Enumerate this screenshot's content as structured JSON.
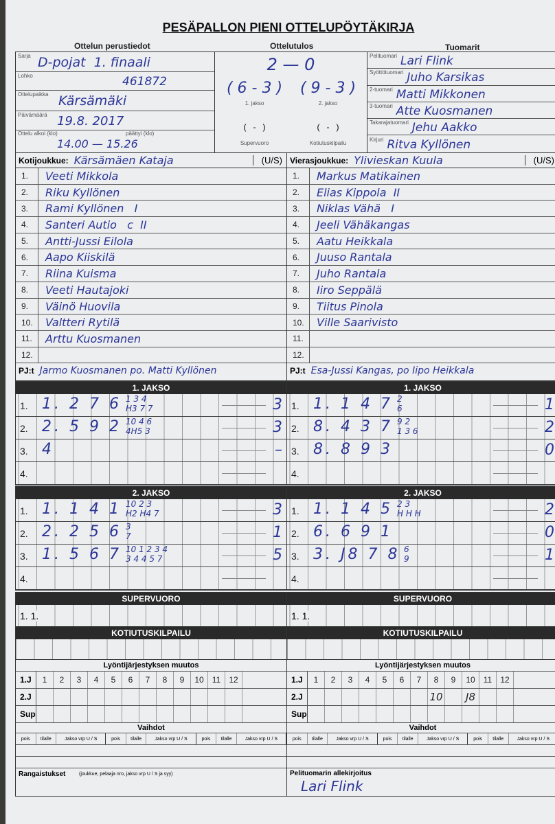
{
  "title": "PESÄPALLON PIENI OTTELUPÖYTÄKIRJA",
  "sections": {
    "basic": "Ottelun perustiedot",
    "result": "Ottelutulos",
    "referees": "Tuomarit"
  },
  "basic": {
    "series_label": "Sarja",
    "series": "D-pojat  1. finaali",
    "block_label": "Lohko",
    "block": "461872",
    "venue_label": "Ottelupaikka",
    "venue": "Kärsämäki",
    "date_label": "Päivämäärä",
    "date": "19.8. 2017",
    "start_label": "Ottelu alkoi (klo)",
    "end_label": "päättyi (klo)",
    "time": "14.00 — 15.26"
  },
  "result": {
    "final": "2 — 0",
    "period1": "( 6 - 3 )",
    "period2": "( 9 - 3 )",
    "period1_label": "1. jakso",
    "period2_label": "2. jakso",
    "super": "(   -   )",
    "homerun": "(   -   )",
    "super_label": "Supervuoro",
    "homerun_label": "Kotiutuskilpailu"
  },
  "referees": [
    {
      "label": "Pelituomari",
      "name": "Lari Flink"
    },
    {
      "label": "Syöttötuomari",
      "name": "Juho Karsikas"
    },
    {
      "label": "2-tuomari",
      "name": "Matti Mikkonen"
    },
    {
      "label": "3-tuomari",
      "name": "Atte Kuosmanen"
    },
    {
      "label": "Takarajatuomari",
      "name": "Jehu Aakko"
    },
    {
      "label": "Kirjuri",
      "name": "Ritva Kyllönen"
    }
  ],
  "home": {
    "label": "Kotijoukkue:",
    "name": "Kärsämäen Kataja",
    "us": "(U/S)",
    "selected": "U",
    "players": [
      "Veeti Mikkola",
      "Riku Kyllönen",
      "Rami Kyllönen   I",
      "Santeri Autio   c  II",
      "Antti-Jussi Eilola",
      "Aapo Kiiskilä",
      "Riina Kuisma",
      "Veeti Hautajoki",
      "Väinö Huovila",
      "Valtteri Rytilä",
      "Arttu Kuosmanen",
      ""
    ],
    "pj_label": "PJ:t",
    "pj": "Jarmo Kuosmanen po. Matti Kyllönen"
  },
  "away": {
    "label": "Vierasjoukkue:",
    "name": "Ylivieskan Kuula",
    "us": "(U/S)",
    "selected": "S",
    "players": [
      "Markus Matikainen",
      "Elias Kippola  II",
      "Niklas Vähä   I",
      "Jeeli Vähäkangas",
      "Aatu Heikkala",
      "Juuso Rantala",
      "Juho Rantala",
      "Iiro Seppälä",
      "Tiitus Pinola",
      "Ville Saarivisto",
      "",
      ""
    ],
    "pj_label": "PJ:t",
    "pj": "Esa-Jussi Kangas, po Iipo Heikkala"
  },
  "row_numbers": [
    "1.",
    "2.",
    "3.",
    "4.",
    "5.",
    "6.",
    "7.",
    "8.",
    "9.",
    "10.",
    "11.",
    "12."
  ],
  "periods": [
    {
      "title": "1. JAKSO",
      "home": [
        {
          "n": "1.",
          "e": "1. 2 7 6",
          "top": "1 3 4",
          "bottom": "H3 7 7",
          "r": "3"
        },
        {
          "n": "2.",
          "e": "2. 5 9 2",
          "top": "10 4 6",
          "bottom": "4H5 3",
          "r": "3"
        },
        {
          "n": "3.",
          "e": "4",
          "top": "",
          "bottom": "",
          "r": "–"
        },
        {
          "n": "4.",
          "e": "",
          "top": "",
          "bottom": "",
          "r": ""
        }
      ],
      "away": [
        {
          "n": "1.",
          "e": "1. 1 4 7",
          "top": "2",
          "bottom": "6",
          "r": "1"
        },
        {
          "n": "2.",
          "e": "8. 4 3 7",
          "top": "9 2",
          "bottom": "1 3 6",
          "r": "2"
        },
        {
          "n": "3.",
          "e": "8. 8 9 3",
          "top": "",
          "bottom": "",
          "r": "0"
        },
        {
          "n": "4.",
          "e": "",
          "top": "",
          "bottom": "",
          "r": ""
        }
      ]
    },
    {
      "title": "2. JAKSO",
      "home": [
        {
          "n": "1.",
          "e": "1. 1 4 1",
          "top": "10 2 3",
          "bottom": "H2 H4 7",
          "r": "3"
        },
        {
          "n": "2.",
          "e": "2. 2 5 6",
          "top": "3",
          "bottom": "7",
          "r": "1"
        },
        {
          "n": "3.",
          "e": "1. 5 6 7",
          "top": "10 1 2 3 4",
          "bottom": "3 4 4 5 7",
          "r": "5"
        },
        {
          "n": "4.",
          "e": "",
          "top": "",
          "bottom": "",
          "r": ""
        }
      ],
      "away": [
        {
          "n": "1.",
          "e": "1. 1 4 5",
          "top": "2 3",
          "bottom": "H H H",
          "r": "2"
        },
        {
          "n": "2.",
          "e": "6. 6 9 1",
          "top": "",
          "bottom": "",
          "r": "0"
        },
        {
          "n": "3.",
          "e": "3. J8 7 8",
          "top": "6",
          "bottom": "9",
          "r": "1"
        },
        {
          "n": "4.",
          "e": "",
          "top": "",
          "bottom": "",
          "r": ""
        }
      ]
    }
  ],
  "supervuoro": {
    "title": "SUPERVUORO",
    "home": "1. 1.",
    "away": "1. 1."
  },
  "kotiutus": {
    "title": "KOTIUTUSKILPAILU"
  },
  "order": {
    "title": "Lyöntijärjestyksen muutos",
    "rows": [
      "1.J",
      "2.J",
      "Sup"
    ],
    "cols": [
      "1",
      "2",
      "3",
      "4",
      "5",
      "6",
      "7",
      "8",
      "9",
      "10",
      "11",
      "12"
    ],
    "away_2j": {
      "8": "10",
      "10": "J8"
    }
  },
  "subs": {
    "title": "Vaihdot",
    "cols": [
      "pois",
      "tilalle",
      "Jakso vrp U / S"
    ]
  },
  "penalties_label": "Rangaistukset",
  "penalties_note": "(joukkue, pelaaja nro, jakso vrp U / S ja syy)",
  "signature_label": "Pelituomarin allekirjoitus",
  "signature": "Lari Flink",
  "colors": {
    "ink": "#2b3596",
    "paper": "#eceef0",
    "bar": "#2a2a2a"
  }
}
